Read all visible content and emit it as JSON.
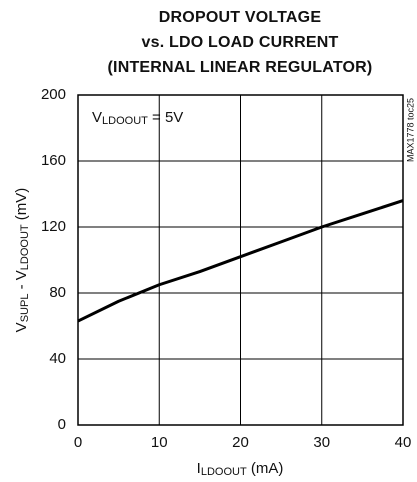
{
  "chart_data": {
    "type": "line",
    "title": [
      "DROPOUT VOLTAGE",
      "vs. LDO LOAD CURRENT",
      "(INTERNAL LINEAR REGULATOR)"
    ],
    "xlabel": [
      "I",
      "LDOOUT",
      " (mA)"
    ],
    "ylabel": [
      "V",
      "SUPL",
      " - V",
      "LDOOUT",
      " (mV)"
    ],
    "annotation": [
      "V",
      "LDOOUT",
      " = 5V"
    ],
    "side_note": "MAX1778 toc25",
    "x": [
      0,
      5,
      10,
      15,
      20,
      25,
      30,
      35,
      40
    ],
    "series": [
      {
        "color": "#000000",
        "values": [
          63,
          75,
          85,
          93,
          102,
          111,
          120,
          128,
          136
        ]
      }
    ],
    "xlim": [
      0,
      40
    ],
    "xticks": [
      0,
      10,
      20,
      30,
      40
    ],
    "ylim": [
      0,
      200
    ],
    "yticks": [
      0,
      40,
      80,
      120,
      160,
      200
    ],
    "grid": true
  }
}
